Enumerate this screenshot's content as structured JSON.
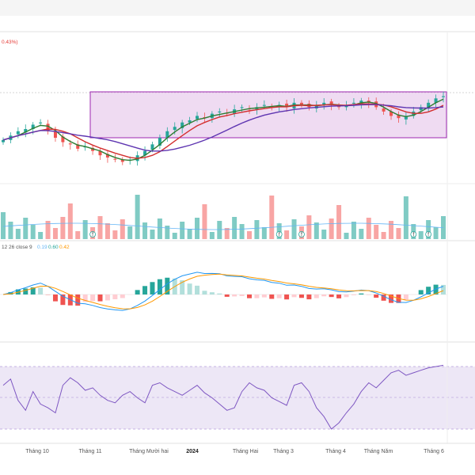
{
  "header": {
    "price_change_text": "0.43%)",
    "macd_params": "12 26 close 9",
    "macd_values": [
      "0.19",
      "0.60",
      "0.42"
    ]
  },
  "colors": {
    "up": "#26a69a",
    "down": "#ef5350",
    "ma_fast": "#2e7d32",
    "ma_mid": "#d32f2f",
    "ma_slow": "#5e35b1",
    "macd_line": "#2196f3",
    "signal_line": "#ff9800",
    "rsi_line": "#7e57c2",
    "rsi_band": "#ede7f6",
    "box": "#9c27b0"
  },
  "chart_data": {
    "type": "candlestick",
    "x_tick_labels": [
      "Tháng 10",
      "Tháng 11",
      "Tháng Mười hai",
      "2024",
      "Tháng Hai",
      "Tháng 3",
      "Tháng 4",
      "Tháng Năm",
      "Tháng 6"
    ],
    "bold_tick": "2024",
    "closes": [
      40,
      42,
      44,
      45,
      47,
      48,
      44,
      41,
      39,
      38,
      36,
      37,
      35,
      33,
      32,
      31,
      30,
      31,
      33,
      35,
      38,
      41,
      44,
      46,
      48,
      49,
      51,
      50,
      52,
      53,
      52,
      54,
      55,
      54,
      55,
      56,
      55,
      56,
      55,
      57,
      56,
      55,
      56,
      57,
      56,
      55,
      56,
      57,
      58,
      57,
      55,
      53,
      51,
      50,
      51,
      53,
      55,
      57,
      59,
      60
    ],
    "rsi_values": [
      60,
      65,
      48,
      40,
      55,
      45,
      42,
      38,
      60,
      66,
      62,
      56,
      58,
      52,
      48,
      46,
      52,
      55,
      50,
      46,
      60,
      62,
      58,
      55,
      52,
      56,
      60,
      54,
      50,
      45,
      40,
      42,
      55,
      62,
      58,
      56,
      50,
      47,
      44,
      60,
      62,
      55,
      42,
      35,
      25,
      30,
      38,
      45,
      55,
      62,
      58,
      64,
      70,
      72,
      68,
      70,
      72,
      74,
      75,
      76
    ],
    "volume_markers": [
      "f",
      "f",
      "f",
      "f",
      "f"
    ],
    "highlight_box": true
  }
}
